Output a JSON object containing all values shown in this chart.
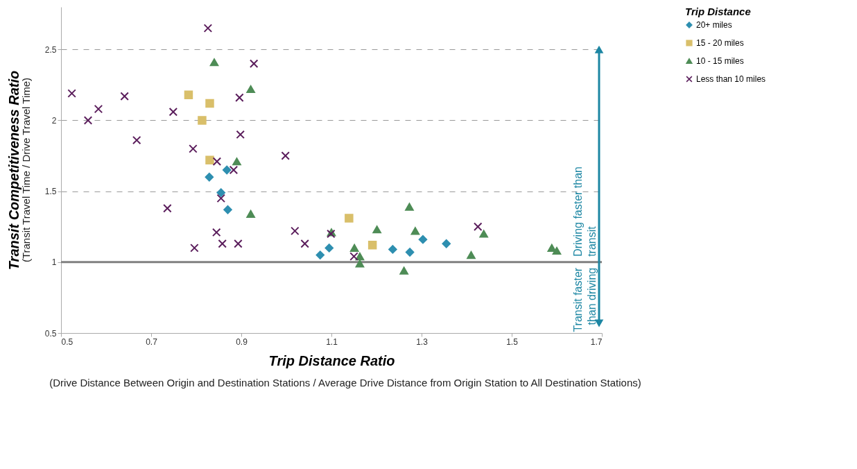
{
  "chart_data": {
    "type": "scatter",
    "xlabel": "Trip Distance Ratio",
    "ylabel": "Transit Competitiveness Ratio",
    "legend_title": "Trip Distance",
    "annotations": [
      "(Transit Travel Time / Drive Travel Time)",
      "(Drive Distance Between Origin and Destination Stations / Average Drive Distance from Origin Station to All Destination Stations)",
      "Driving faster than transit",
      "Transit faster than driving"
    ],
    "xlim": [
      0.5,
      1.7
    ],
    "xticks": [
      0.5,
      0.7,
      0.9,
      1.1,
      1.3,
      1.5,
      1.7
    ],
    "ylim": [
      0.5,
      2.8
    ],
    "yticks": [
      0.5,
      1,
      1.5,
      2,
      2.5
    ],
    "grid": "y",
    "legend": "right",
    "ref_lines": [
      {
        "axis": "y",
        "value": 1,
        "color": "#808080"
      }
    ],
    "series": [
      {
        "name": "20+ miles",
        "color": "#2e8fb0",
        "marker": "diamond",
        "x": [
          0.829,
          0.868,
          0.855,
          0.87,
          1.075,
          1.095,
          1.236,
          1.274,
          1.303,
          1.355
        ],
        "values": [
          1.6,
          1.65,
          1.49,
          1.37,
          1.05,
          1.1,
          1.09,
          1.07,
          1.16,
          1.13
        ]
      },
      {
        "name": "15 - 20 miles",
        "color": "#d9bf6a",
        "marker": "square",
        "x": [
          0.783,
          0.83,
          0.813,
          0.83,
          1.139,
          1.191
        ],
        "values": [
          2.18,
          2.12,
          2.0,
          1.72,
          1.31,
          1.12
        ]
      },
      {
        "name": "10 - 15 miles",
        "color": "#4e8c56",
        "marker": "triangle",
        "x": [
          0.84,
          0.921,
          0.89,
          0.921,
          1.1,
          1.151,
          1.163,
          1.163,
          1.201,
          1.261,
          1.273,
          1.286,
          1.41,
          1.438,
          1.589,
          1.6
        ],
        "values": [
          2.41,
          2.22,
          1.71,
          1.34,
          1.21,
          1.1,
          1.04,
          0.99,
          1.23,
          0.94,
          1.39,
          1.22,
          1.05,
          1.2,
          1.1,
          1.08
        ]
      },
      {
        "name": "Less than 10 miles",
        "color": "#5b1e5c",
        "marker": "cross",
        "x": [
          0.524,
          0.56,
          0.583,
          0.641,
          0.668,
          0.736,
          0.749,
          0.793,
          0.796,
          0.826,
          0.846,
          0.845,
          0.855,
          0.858,
          0.883,
          0.893,
          0.896,
          0.898,
          0.928,
          0.998,
          1.019,
          1.041,
          1.099,
          1.15,
          1.425
        ],
        "values": [
          2.19,
          2.0,
          2.08,
          2.17,
          1.86,
          1.38,
          2.06,
          1.8,
          1.1,
          2.65,
          1.71,
          1.21,
          1.45,
          1.13,
          1.65,
          1.13,
          2.16,
          1.9,
          2.4,
          1.75,
          1.22,
          1.13,
          1.2,
          1.04,
          1.25
        ]
      }
    ]
  }
}
